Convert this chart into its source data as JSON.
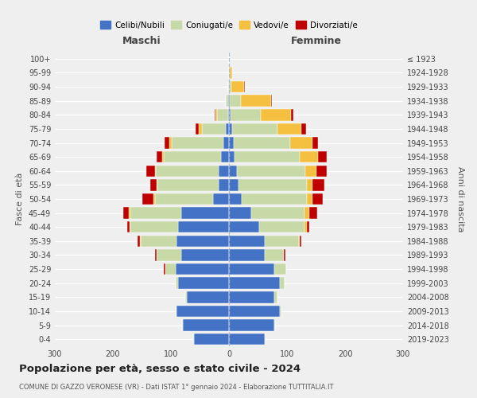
{
  "age_groups": [
    "0-4",
    "5-9",
    "10-14",
    "15-19",
    "20-24",
    "25-29",
    "30-34",
    "35-39",
    "40-44",
    "45-49",
    "50-54",
    "55-59",
    "60-64",
    "65-69",
    "70-74",
    "75-79",
    "80-84",
    "85-89",
    "90-94",
    "95-99",
    "100+"
  ],
  "birth_years": [
    "2019-2023",
    "2014-2018",
    "2009-2013",
    "2004-2008",
    "1999-2003",
    "1994-1998",
    "1989-1993",
    "1984-1988",
    "1979-1983",
    "1974-1978",
    "1969-1973",
    "1964-1968",
    "1959-1963",
    "1954-1958",
    "1949-1953",
    "1944-1948",
    "1939-1943",
    "1934-1938",
    "1929-1933",
    "1924-1928",
    "≤ 1923"
  ],
  "maschi": {
    "celibi": [
      60,
      80,
      90,
      72,
      88,
      92,
      82,
      90,
      88,
      82,
      28,
      18,
      18,
      14,
      10,
      5,
      2,
      1,
      0,
      0,
      0
    ],
    "coniugati": [
      1,
      1,
      2,
      3,
      4,
      18,
      42,
      62,
      82,
      88,
      100,
      105,
      108,
      98,
      88,
      42,
      18,
      4,
      1,
      0,
      0
    ],
    "vedovi": [
      0,
      0,
      0,
      0,
      0,
      0,
      0,
      1,
      1,
      2,
      2,
      2,
      2,
      3,
      5,
      5,
      3,
      1,
      0,
      0,
      0
    ],
    "divorziati": [
      0,
      0,
      0,
      0,
      0,
      2,
      3,
      5,
      5,
      10,
      20,
      10,
      14,
      10,
      8,
      5,
      2,
      0,
      0,
      0,
      0
    ]
  },
  "femmine": {
    "nubili": [
      62,
      78,
      88,
      78,
      88,
      78,
      62,
      62,
      52,
      38,
      22,
      16,
      14,
      10,
      8,
      5,
      3,
      2,
      0,
      0,
      0
    ],
    "coniugate": [
      1,
      2,
      3,
      5,
      8,
      20,
      32,
      58,
      78,
      92,
      112,
      118,
      118,
      112,
      98,
      78,
      52,
      18,
      4,
      1,
      0
    ],
    "vedove": [
      0,
      0,
      0,
      0,
      0,
      0,
      1,
      2,
      4,
      8,
      10,
      10,
      18,
      32,
      38,
      42,
      52,
      52,
      22,
      4,
      0
    ],
    "divorziate": [
      0,
      0,
      0,
      0,
      0,
      1,
      2,
      3,
      4,
      14,
      18,
      20,
      18,
      14,
      10,
      8,
      4,
      2,
      1,
      0,
      0
    ]
  },
  "colors": {
    "celibi": "#4472c4",
    "coniugati": "#c8d9a8",
    "vedovi": "#f5c040",
    "divorziati": "#c00000"
  },
  "xlim": 300,
  "title": "Popolazione per età, sesso e stato civile - 2024",
  "subtitle": "COMUNE DI GAZZO VERONESE (VR) - Dati ISTAT 1° gennaio 2024 - Elaborazione TUTTITALIA.IT",
  "ylabel_left": "Fasce di età",
  "ylabel_right": "Anni di nascita",
  "bg_color": "#efefef",
  "grid_color": "#ffffff"
}
